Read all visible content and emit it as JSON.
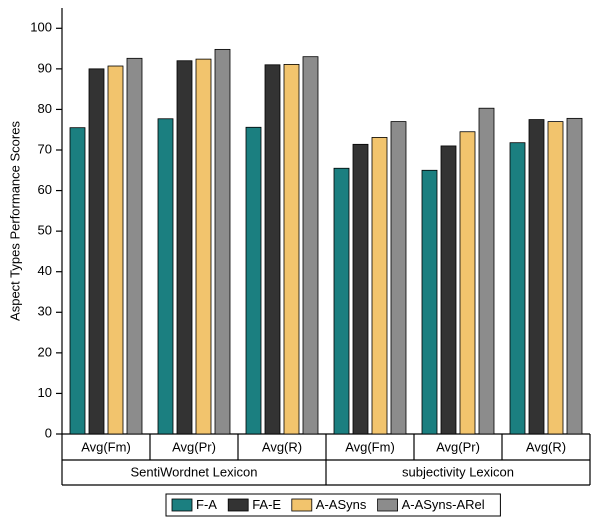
{
  "chart_data": {
    "type": "bar",
    "y_label": "Aspect Types Performance Scores",
    "groups": [
      {
        "name": "SentiWordnet Lexicon",
        "categories": [
          "Avg(Fm)",
          "Avg(Pr)",
          "Avg(R)"
        ]
      },
      {
        "name": "subjectivity Lexicon",
        "categories": [
          "Avg(Fm)",
          "Avg(Pr)",
          "Avg(R)"
        ]
      }
    ],
    "series": [
      {
        "name": "F-A",
        "color": "#1b7f80",
        "values": [
          75.5,
          77.7,
          75.6,
          65.5,
          65,
          71.8
        ]
      },
      {
        "name": "FA-E",
        "color": "#333333",
        "values": [
          90,
          92,
          91,
          71.4,
          71,
          77.5
        ]
      },
      {
        "name": "A-ASyns",
        "color": "#f2c46d",
        "values": [
          90.7,
          92.4,
          91.1,
          73.1,
          74.5,
          77
        ]
      },
      {
        "name": "A-ASyns-ARel",
        "color": "#8c8c8c",
        "values": [
          92.6,
          94.8,
          93,
          77,
          80.3,
          77.8
        ]
      }
    ],
    "ylim": [
      0,
      105
    ],
    "yticks": [
      0,
      10,
      20,
      30,
      40,
      50,
      60,
      70,
      80,
      90,
      100
    ],
    "legend": "bottom"
  }
}
